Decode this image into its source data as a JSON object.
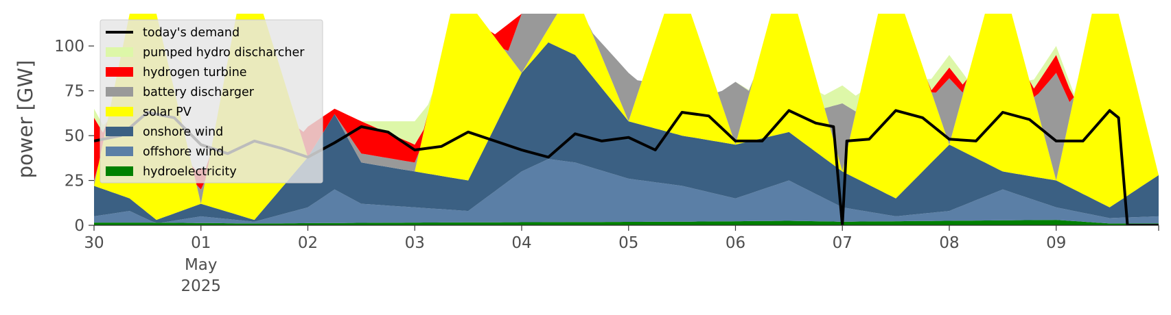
{
  "chart_data": {
    "type": "area",
    "ylabel": "power [GW]",
    "ylim": [
      0,
      118
    ],
    "yticks": [
      0,
      25,
      50,
      75,
      100
    ],
    "xlim": [
      "2025-04-30T00:00",
      "2025-05-09T23:00"
    ],
    "xticks": [
      {
        "date": "2025-04-30",
        "label": "30"
      },
      {
        "date": "2025-05-01",
        "label": "01",
        "sublabels": [
          "May",
          "2025"
        ]
      },
      {
        "date": "2025-05-02",
        "label": "02"
      },
      {
        "date": "2025-05-03",
        "label": "03"
      },
      {
        "date": "2025-05-04",
        "label": "04"
      },
      {
        "date": "2025-05-05",
        "label": "05"
      },
      {
        "date": "2025-05-06",
        "label": "06"
      },
      {
        "date": "2025-05-07",
        "label": "07"
      },
      {
        "date": "2025-05-08",
        "label": "08"
      },
      {
        "date": "2025-05-09",
        "label": "09"
      }
    ],
    "grid": false,
    "legend_position": "top-left",
    "stack_order": [
      "hydroelectricity",
      "offshore wind",
      "onshore wind",
      "solar PV",
      "battery discharger",
      "hydrogen turbine",
      "pumped hydro discharcher"
    ],
    "series": [
      {
        "name": "hydroelectricity",
        "color": "#008000",
        "points": [
          [
            "2025-04-30T00:00",
            1.5
          ],
          [
            "2025-04-30T12:00",
            1.5
          ],
          [
            "2025-05-01T12:00",
            1
          ],
          [
            "2025-05-03T00:00",
            1.5
          ],
          [
            "2025-05-05T12:00",
            2
          ],
          [
            "2025-05-06T12:00",
            2.5
          ],
          [
            "2025-05-07T00:00",
            2
          ],
          [
            "2025-05-08T00:00",
            2.5
          ],
          [
            "2025-05-09T00:00",
            3
          ],
          [
            "2025-05-09T12:00",
            1
          ],
          [
            "2025-05-09T23:00",
            1
          ]
        ]
      },
      {
        "name": "offshore wind",
        "color": "#5b7fa6",
        "points": [
          [
            "2025-04-30T00:00",
            5
          ],
          [
            "2025-04-30T08:00",
            8
          ],
          [
            "2025-04-30T14:00",
            1
          ],
          [
            "2025-05-01T00:00",
            5
          ],
          [
            "2025-05-01T12:00",
            2
          ],
          [
            "2025-05-02T00:00",
            10
          ],
          [
            "2025-05-02T06:00",
            20
          ],
          [
            "2025-05-02T12:00",
            12
          ],
          [
            "2025-05-03T00:00",
            10
          ],
          [
            "2025-05-03T12:00",
            8
          ],
          [
            "2025-05-04T00:00",
            30
          ],
          [
            "2025-05-04T06:00",
            37
          ],
          [
            "2025-05-04T12:00",
            35
          ],
          [
            "2025-05-05T00:00",
            26
          ],
          [
            "2025-05-05T12:00",
            22
          ],
          [
            "2025-05-06T00:00",
            15
          ],
          [
            "2025-05-06T12:00",
            25
          ],
          [
            "2025-05-07T00:00",
            10
          ],
          [
            "2025-05-07T12:00",
            5
          ],
          [
            "2025-05-08T00:00",
            8
          ],
          [
            "2025-05-08T12:00",
            20
          ],
          [
            "2025-05-09T00:00",
            10
          ],
          [
            "2025-05-09T12:00",
            4
          ],
          [
            "2025-05-09T23:00",
            5
          ]
        ]
      },
      {
        "name": "onshore wind",
        "color": "#3b6083",
        "points": [
          [
            "2025-04-30T00:00",
            22
          ],
          [
            "2025-04-30T08:00",
            15
          ],
          [
            "2025-04-30T14:00",
            3
          ],
          [
            "2025-05-01T00:00",
            12
          ],
          [
            "2025-05-01T12:00",
            3
          ],
          [
            "2025-05-02T00:00",
            38
          ],
          [
            "2025-05-02T06:00",
            62
          ],
          [
            "2025-05-02T12:00",
            35
          ],
          [
            "2025-05-03T00:00",
            30
          ],
          [
            "2025-05-03T12:00",
            25
          ],
          [
            "2025-05-04T00:00",
            85
          ],
          [
            "2025-05-04T06:00",
            102
          ],
          [
            "2025-05-04T12:00",
            95
          ],
          [
            "2025-05-05T00:00",
            58
          ],
          [
            "2025-05-05T12:00",
            50
          ],
          [
            "2025-05-06T00:00",
            45
          ],
          [
            "2025-05-06T12:00",
            52
          ],
          [
            "2025-05-07T00:00",
            30
          ],
          [
            "2025-05-07T12:00",
            15
          ],
          [
            "2025-05-08T00:00",
            45
          ],
          [
            "2025-05-08T12:00",
            30
          ],
          [
            "2025-05-09T00:00",
            25
          ],
          [
            "2025-05-09T12:00",
            10
          ],
          [
            "2025-05-09T23:00",
            28
          ]
        ]
      },
      {
        "name": "solar PV",
        "color": "#ffff00",
        "points": [
          [
            "2025-04-30T00:00",
            22
          ],
          [
            "2025-04-30T08:00",
            118
          ],
          [
            "2025-04-30T14:00",
            118
          ],
          [
            "2025-05-01T00:00",
            12
          ],
          [
            "2025-05-01T08:00",
            118
          ],
          [
            "2025-05-01T14:00",
            118
          ],
          [
            "2025-05-02T00:00",
            38
          ],
          [
            "2025-05-02T06:00",
            62
          ],
          [
            "2025-05-02T12:00",
            35
          ],
          [
            "2025-05-03T00:00",
            30
          ],
          [
            "2025-05-03T08:00",
            118
          ],
          [
            "2025-05-03T14:00",
            118
          ],
          [
            "2025-05-04T00:00",
            85
          ],
          [
            "2025-05-04T08:00",
            118
          ],
          [
            "2025-05-04T14:00",
            118
          ],
          [
            "2025-05-05T00:00",
            58
          ],
          [
            "2025-05-05T08:00",
            118
          ],
          [
            "2025-05-05T14:00",
            118
          ],
          [
            "2025-05-06T00:00",
            45
          ],
          [
            "2025-05-06T08:00",
            118
          ],
          [
            "2025-05-06T14:00",
            118
          ],
          [
            "2025-05-07T00:00",
            30
          ],
          [
            "2025-05-07T08:00",
            118
          ],
          [
            "2025-05-07T14:00",
            118
          ],
          [
            "2025-05-08T00:00",
            45
          ],
          [
            "2025-05-08T08:00",
            118
          ],
          [
            "2025-05-08T14:00",
            118
          ],
          [
            "2025-05-09T00:00",
            25
          ],
          [
            "2025-05-09T08:00",
            118
          ],
          [
            "2025-05-09T14:00",
            118
          ],
          [
            "2025-05-09T23:00",
            28
          ]
        ]
      },
      {
        "name": "battery discharger",
        "color": "#999999",
        "points": [
          [
            "2025-04-30T00:00",
            25
          ],
          [
            "2025-04-30T12:00",
            10
          ],
          [
            "2025-05-01T00:00",
            20
          ],
          [
            "2025-05-01T12:00",
            20
          ],
          [
            "2025-05-02T00:00",
            38
          ],
          [
            "2025-05-02T06:00",
            62
          ],
          [
            "2025-05-02T12:00",
            40
          ],
          [
            "2025-05-03T00:00",
            35
          ],
          [
            "2025-05-03T12:00",
            35
          ],
          [
            "2025-05-04T00:00",
            118
          ],
          [
            "2025-05-04T12:00",
            118
          ],
          [
            "2025-05-05T00:00",
            85
          ],
          [
            "2025-05-05T12:00",
            60
          ],
          [
            "2025-05-06T00:00",
            80
          ],
          [
            "2025-05-06T12:00",
            60
          ],
          [
            "2025-05-07T00:00",
            68
          ],
          [
            "2025-05-07T12:00",
            50
          ],
          [
            "2025-05-08T00:00",
            82
          ],
          [
            "2025-05-08T12:00",
            50
          ],
          [
            "2025-05-09T00:00",
            85
          ],
          [
            "2025-05-09T12:00",
            20
          ],
          [
            "2025-05-09T23:00",
            28
          ]
        ]
      },
      {
        "name": "hydrogen turbine",
        "color": "#ff0000",
        "points": [
          [
            "2025-04-30T00:00",
            60
          ],
          [
            "2025-04-30T12:00",
            10
          ],
          [
            "2025-05-01T00:00",
            32
          ],
          [
            "2025-05-01T12:00",
            20
          ],
          [
            "2025-05-02T00:00",
            55
          ],
          [
            "2025-05-02T06:00",
            65
          ],
          [
            "2025-05-02T12:00",
            58
          ],
          [
            "2025-05-03T00:00",
            45
          ],
          [
            "2025-05-03T12:00",
            95
          ],
          [
            "2025-05-04T00:00",
            118
          ],
          [
            "2025-05-04T12:00",
            118
          ],
          [
            "2025-05-05T00:00",
            85
          ],
          [
            "2025-05-05T12:00",
            60
          ],
          [
            "2025-05-06T00:00",
            80
          ],
          [
            "2025-05-06T12:00",
            60
          ],
          [
            "2025-05-07T00:00",
            68
          ],
          [
            "2025-05-07T12:00",
            50
          ],
          [
            "2025-05-08T00:00",
            88
          ],
          [
            "2025-05-08T12:00",
            50
          ],
          [
            "2025-05-09T00:00",
            95
          ],
          [
            "2025-05-09T12:00",
            20
          ],
          [
            "2025-05-09T23:00",
            28
          ]
        ]
      },
      {
        "name": "pumped hydro discharcher",
        "color": "#ddf7a8",
        "points": [
          [
            "2025-04-30T00:00",
            65
          ],
          [
            "2025-04-30T12:00",
            10
          ],
          [
            "2025-05-01T00:00",
            32
          ],
          [
            "2025-05-01T12:00",
            20
          ],
          [
            "2025-05-02T00:00",
            55
          ],
          [
            "2025-05-02T06:00",
            65
          ],
          [
            "2025-05-02T12:00",
            58
          ],
          [
            "2025-05-03T00:00",
            58
          ],
          [
            "2025-05-03T12:00",
            95
          ],
          [
            "2025-05-04T00:00",
            118
          ],
          [
            "2025-05-04T12:00",
            118
          ],
          [
            "2025-05-05T00:00",
            85
          ],
          [
            "2025-05-05T12:00",
            60
          ],
          [
            "2025-05-06T00:00",
            80
          ],
          [
            "2025-05-06T12:00",
            62
          ],
          [
            "2025-05-07T00:00",
            78
          ],
          [
            "2025-05-07T12:00",
            55
          ],
          [
            "2025-05-08T00:00",
            95
          ],
          [
            "2025-05-08T12:00",
            55
          ],
          [
            "2025-05-09T00:00",
            100
          ],
          [
            "2025-05-09T12:00",
            20
          ],
          [
            "2025-05-09T23:00",
            28
          ]
        ]
      }
    ],
    "line_series": {
      "name": "today's demand",
      "color": "#000000",
      "points": [
        [
          "2025-04-30T00:00",
          47
        ],
        [
          "2025-04-30T06:00",
          50
        ],
        [
          "2025-04-30T12:00",
          63
        ],
        [
          "2025-04-30T18:00",
          60
        ],
        [
          "2025-05-01T00:00",
          45
        ],
        [
          "2025-05-01T06:00",
          40
        ],
        [
          "2025-05-01T12:00",
          47
        ],
        [
          "2025-05-01T18:00",
          43
        ],
        [
          "2025-05-02T00:00",
          38
        ],
        [
          "2025-05-02T06:00",
          46
        ],
        [
          "2025-05-02T12:00",
          55
        ],
        [
          "2025-05-02T18:00",
          52
        ],
        [
          "2025-05-03T00:00",
          42
        ],
        [
          "2025-05-03T06:00",
          44
        ],
        [
          "2025-05-03T12:00",
          52
        ],
        [
          "2025-05-03T18:00",
          47
        ],
        [
          "2025-05-04T00:00",
          42
        ],
        [
          "2025-05-04T06:00",
          38
        ],
        [
          "2025-05-04T12:00",
          51
        ],
        [
          "2025-05-04T18:00",
          47
        ],
        [
          "2025-05-05T00:00",
          49
        ],
        [
          "2025-05-05T06:00",
          42
        ],
        [
          "2025-05-05T12:00",
          63
        ],
        [
          "2025-05-05T18:00",
          61
        ],
        [
          "2025-05-06T00:00",
          47
        ],
        [
          "2025-05-06T06:00",
          47
        ],
        [
          "2025-05-06T12:00",
          64
        ],
        [
          "2025-05-06T18:00",
          57
        ],
        [
          "2025-05-06T22:00",
          55
        ],
        [
          "2025-05-07T00:00",
          0
        ],
        [
          "2025-05-07T01:00",
          47
        ],
        [
          "2025-05-07T06:00",
          48
        ],
        [
          "2025-05-07T12:00",
          64
        ],
        [
          "2025-05-07T18:00",
          60
        ],
        [
          "2025-05-08T00:00",
          48
        ],
        [
          "2025-05-08T06:00",
          47
        ],
        [
          "2025-05-08T12:00",
          63
        ],
        [
          "2025-05-08T18:00",
          59
        ],
        [
          "2025-05-09T00:00",
          47
        ],
        [
          "2025-05-09T06:00",
          47
        ],
        [
          "2025-05-09T12:00",
          64
        ],
        [
          "2025-05-09T14:00",
          60
        ],
        [
          "2025-05-09T16:00",
          0
        ],
        [
          "2025-05-09T23:00",
          0
        ]
      ]
    },
    "legend": [
      {
        "label": "today's demand",
        "color": "#000000",
        "kind": "line"
      },
      {
        "label": "pumped hydro discharcher",
        "color": "#ddf7a8",
        "kind": "patch"
      },
      {
        "label": "hydrogen turbine",
        "color": "#ff0000",
        "kind": "patch"
      },
      {
        "label": "battery discharger",
        "color": "#999999",
        "kind": "patch"
      },
      {
        "label": "solar PV",
        "color": "#ffff00",
        "kind": "patch"
      },
      {
        "label": "onshore wind",
        "color": "#3b6083",
        "kind": "patch"
      },
      {
        "label": "offshore wind",
        "color": "#5b7fa6",
        "kind": "patch"
      },
      {
        "label": "hydroelectricity",
        "color": "#008000",
        "kind": "patch"
      }
    ]
  }
}
